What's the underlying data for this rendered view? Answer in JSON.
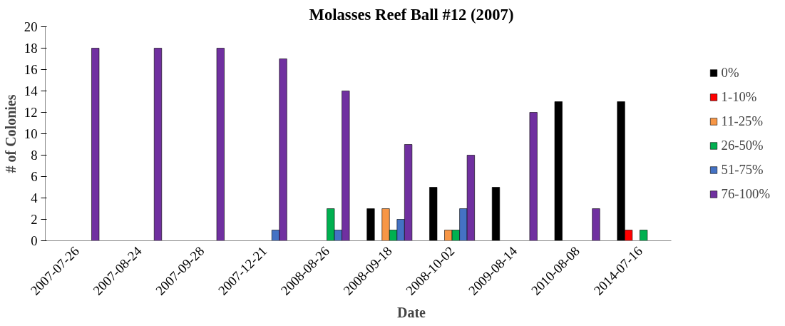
{
  "chart_data": {
    "type": "bar",
    "title": "Molasses Reef Ball #12 (2007)",
    "xlabel": "Date",
    "ylabel": "# of Colonies",
    "categories": [
      "2007-07-26",
      "2007-08-24",
      "2007-09-28",
      "2007-12-21",
      "2008-08-26",
      "2008-09-18",
      "2008-10-02",
      "2009-08-14",
      "2010-08-08",
      "2014-07-16"
    ],
    "series": [
      {
        "name": "0%",
        "color": "#000000",
        "values": [
          0,
          0,
          0,
          0,
          0,
          3,
          5,
          5,
          13,
          13
        ]
      },
      {
        "name": "1-10%",
        "color": "#ff0000",
        "values": [
          0,
          0,
          0,
          0,
          0,
          0,
          0,
          0,
          0,
          1
        ]
      },
      {
        "name": "11-25%",
        "color": "#f79646",
        "values": [
          0,
          0,
          0,
          0,
          0,
          3,
          1,
          0,
          0,
          0
        ]
      },
      {
        "name": "26-50%",
        "color": "#00b050",
        "values": [
          0,
          0,
          0,
          0,
          3,
          1,
          1,
          0,
          0,
          1
        ]
      },
      {
        "name": "51-75%",
        "color": "#4472c4",
        "values": [
          0,
          0,
          0,
          1,
          1,
          2,
          3,
          0,
          0,
          0
        ]
      },
      {
        "name": "76-100%",
        "color": "#7030a0",
        "values": [
          18,
          18,
          18,
          17,
          14,
          9,
          8,
          12,
          3,
          0
        ]
      }
    ],
    "ylim": [
      0,
      20
    ],
    "yticks": [
      0,
      2,
      4,
      6,
      8,
      10,
      12,
      14,
      16,
      18,
      20
    ],
    "grid": false,
    "legend": "right"
  }
}
